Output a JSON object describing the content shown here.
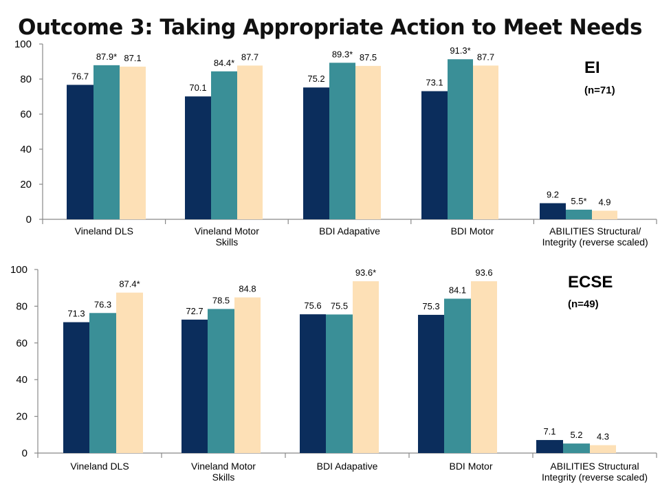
{
  "title": "Outcome 3: Taking Appropriate Action to Meet Needs",
  "colors": {
    "series": [
      "#0b2d5c",
      "#3a8f97",
      "#fde0b6"
    ],
    "axis": "#888888"
  },
  "chart_data": [
    {
      "type": "bar",
      "group_label": "EI",
      "group_n": "(n=71)",
      "ylim": [
        0,
        100
      ],
      "yticks": [
        0,
        20,
        40,
        60,
        80,
        100
      ],
      "grid": false,
      "categories": [
        "Vineland DLS",
        "Vineland Motor|Skills",
        "BDI Adapative",
        "BDI Motor",
        "ABILITIES Structural/|Integrity (reverse scaled)"
      ],
      "series": [
        {
          "values": [
            76.7,
            70.1,
            75.2,
            73.1,
            9.2
          ],
          "labels": [
            "76.7",
            "70.1",
            "75.2",
            "73.1",
            "9.2"
          ]
        },
        {
          "values": [
            87.9,
            84.4,
            89.3,
            91.3,
            5.5
          ],
          "labels": [
            "87.9*",
            "84.4*",
            "89.3*",
            "91.3*",
            "5.5*"
          ]
        },
        {
          "values": [
            87.1,
            87.7,
            87.5,
            87.7,
            4.9
          ],
          "labels": [
            "87.1",
            "87.7",
            "87.5",
            "87.7",
            "4.9"
          ]
        }
      ]
    },
    {
      "type": "bar",
      "group_label": "ECSE",
      "group_n": "(n=49)",
      "ylim": [
        0,
        100
      ],
      "yticks": [
        0,
        20,
        40,
        60,
        80,
        100
      ],
      "grid": false,
      "categories": [
        "Vineland DLS",
        "Vineland Motor|Skills",
        "BDI Adapative",
        "BDI Motor",
        "ABILITIES Structural|Integrity (reverse scaled)"
      ],
      "series": [
        {
          "values": [
            71.3,
            72.7,
            75.6,
            75.3,
            7.1
          ],
          "labels": [
            "71.3",
            "72.7",
            "75.6",
            "75.3",
            "7.1"
          ]
        },
        {
          "values": [
            76.3,
            78.5,
            75.5,
            84.1,
            5.2
          ],
          "labels": [
            "76.3",
            "78.5",
            "75.5",
            "84.1",
            "5.2"
          ]
        },
        {
          "values": [
            87.4,
            84.8,
            93.6,
            93.6,
            4.3
          ],
          "labels": [
            "87.4*",
            "84.8",
            "93.6*",
            "93.6",
            "4.3"
          ]
        }
      ]
    }
  ]
}
